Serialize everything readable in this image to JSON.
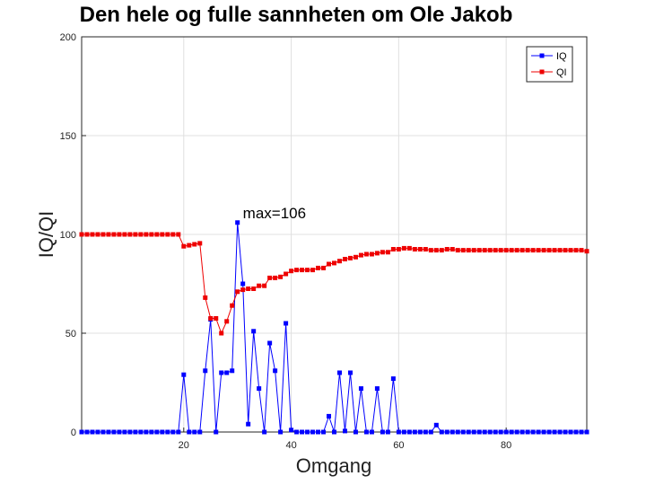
{
  "chart_data": {
    "type": "line",
    "title": "Den hele og fulle sannheten om Ole Jakob",
    "xlabel": "Omgang",
    "ylabel": "IQ/QI",
    "xlim": [
      1,
      95
    ],
    "ylim": [
      0,
      200
    ],
    "xticks": [
      20,
      40,
      60,
      80
    ],
    "yticks": [
      0,
      50,
      100,
      150,
      200
    ],
    "grid": true,
    "legend_position": "top-right",
    "annotation": {
      "text": "max=106",
      "x": 31,
      "y": 111
    },
    "series": [
      {
        "name": "IQ",
        "color": "#0000ff",
        "marker": "square",
        "x": [
          1,
          2,
          3,
          4,
          5,
          6,
          7,
          8,
          9,
          10,
          11,
          12,
          13,
          14,
          15,
          16,
          17,
          18,
          19,
          20,
          21,
          22,
          23,
          24,
          25,
          26,
          27,
          28,
          29,
          30,
          31,
          32,
          33,
          34,
          35,
          36,
          37,
          38,
          39,
          40,
          41,
          42,
          43,
          44,
          45,
          46,
          47,
          48,
          49,
          50,
          51,
          52,
          53,
          54,
          55,
          56,
          57,
          58,
          59,
          60,
          61,
          62,
          63,
          64,
          65,
          66,
          67,
          68,
          69,
          70,
          71,
          72,
          73,
          74,
          75,
          76,
          77,
          78,
          79,
          80,
          81,
          82,
          83,
          84,
          85,
          86,
          87,
          88,
          89,
          90,
          91,
          92,
          93,
          94,
          95
        ],
        "y": [
          0,
          0,
          0,
          0,
          0,
          0,
          0,
          0,
          0,
          0,
          0,
          0,
          0,
          0,
          0,
          0,
          0,
          0,
          0,
          29,
          0,
          0,
          0,
          31,
          57,
          0,
          30,
          30,
          31,
          106,
          75,
          4,
          51,
          22,
          0,
          45,
          31,
          0,
          55,
          1,
          0,
          0,
          0,
          0,
          0,
          0,
          8,
          0,
          30,
          0.5,
          30,
          0,
          22,
          0,
          0,
          22,
          0,
          0,
          27,
          0,
          0,
          0,
          0,
          0,
          0,
          0,
          3.5,
          0,
          0,
          0,
          0,
          0,
          0,
          0,
          0,
          0,
          0,
          0,
          0,
          0,
          0,
          0,
          0,
          0,
          0,
          0,
          0,
          0,
          0,
          0,
          0,
          0,
          0,
          0,
          0
        ]
      },
      {
        "name": "QI",
        "color": "#ee0000",
        "marker": "square",
        "x": [
          1,
          2,
          3,
          4,
          5,
          6,
          7,
          8,
          9,
          10,
          11,
          12,
          13,
          14,
          15,
          16,
          17,
          18,
          19,
          20,
          21,
          22,
          23,
          24,
          25,
          26,
          27,
          28,
          29,
          30,
          31,
          32,
          33,
          34,
          35,
          36,
          37,
          38,
          39,
          40,
          41,
          42,
          43,
          44,
          45,
          46,
          47,
          48,
          49,
          50,
          51,
          52,
          53,
          54,
          55,
          56,
          57,
          58,
          59,
          60,
          61,
          62,
          63,
          64,
          65,
          66,
          67,
          68,
          69,
          70,
          71,
          72,
          73,
          74,
          75,
          76,
          77,
          78,
          79,
          80,
          81,
          82,
          83,
          84,
          85,
          86,
          87,
          88,
          89,
          90,
          91,
          92,
          93,
          94,
          95
        ],
        "y": [
          100,
          100,
          100,
          100,
          100,
          100,
          100,
          100,
          100,
          100,
          100,
          100,
          100,
          100,
          100,
          100,
          100,
          100,
          100,
          94,
          94.5,
          95,
          95.5,
          68,
          57.5,
          57.5,
          50,
          56,
          64,
          71,
          72,
          72.5,
          72.5,
          74,
          74,
          78,
          78,
          78.5,
          80,
          81.5,
          82,
          82,
          82,
          82,
          83,
          83,
          85,
          85.5,
          86.5,
          87.5,
          88,
          88.5,
          89.5,
          90,
          90,
          90.5,
          91,
          91,
          92.5,
          92.5,
          93,
          93,
          92.5,
          92.5,
          92.5,
          92,
          92,
          92,
          92.5,
          92.5,
          92,
          92,
          92,
          92,
          92,
          92,
          92,
          92,
          92,
          92,
          92,
          92,
          92,
          92,
          92,
          92,
          92,
          92,
          92,
          92,
          92,
          92,
          92,
          92,
          91.5
        ]
      }
    ]
  }
}
